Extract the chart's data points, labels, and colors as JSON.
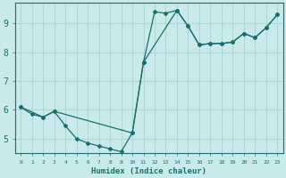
{
  "xlabel": "Humidex (Indice chaleur)",
  "background_color": "#c8eaea",
  "grid_color": "#aed8d8",
  "line_color": "#1a6e6e",
  "xlim": [
    -0.5,
    23.5
  ],
  "ylim": [
    4.5,
    9.7
  ],
  "xticks": [
    0,
    1,
    2,
    3,
    4,
    5,
    6,
    7,
    8,
    9,
    10,
    11,
    12,
    13,
    14,
    15,
    16,
    17,
    18,
    19,
    20,
    21,
    22,
    23
  ],
  "yticks": [
    5,
    6,
    7,
    8,
    9
  ],
  "line1_x": [
    0,
    1,
    2,
    3,
    4,
    5,
    6,
    7,
    8,
    9,
    10,
    11,
    12,
    13,
    14,
    15,
    16,
    17,
    18,
    19,
    20,
    21,
    22,
    23
  ],
  "line1_y": [
    6.1,
    5.85,
    5.75,
    5.95,
    5.45,
    5.0,
    4.85,
    4.75,
    4.65,
    4.55,
    5.2,
    7.65,
    9.4,
    9.35,
    9.45,
    8.9,
    8.25,
    8.3,
    8.3,
    8.35,
    8.65,
    8.5,
    8.85,
    9.3
  ],
  "line2_x": [
    0,
    2,
    3,
    10,
    11,
    14,
    15,
    16,
    17,
    18,
    19,
    20,
    21,
    22,
    23
  ],
  "line2_y": [
    6.1,
    5.75,
    5.95,
    5.2,
    7.65,
    9.45,
    8.9,
    8.25,
    8.3,
    8.3,
    8.35,
    8.65,
    8.5,
    8.85,
    9.3
  ]
}
